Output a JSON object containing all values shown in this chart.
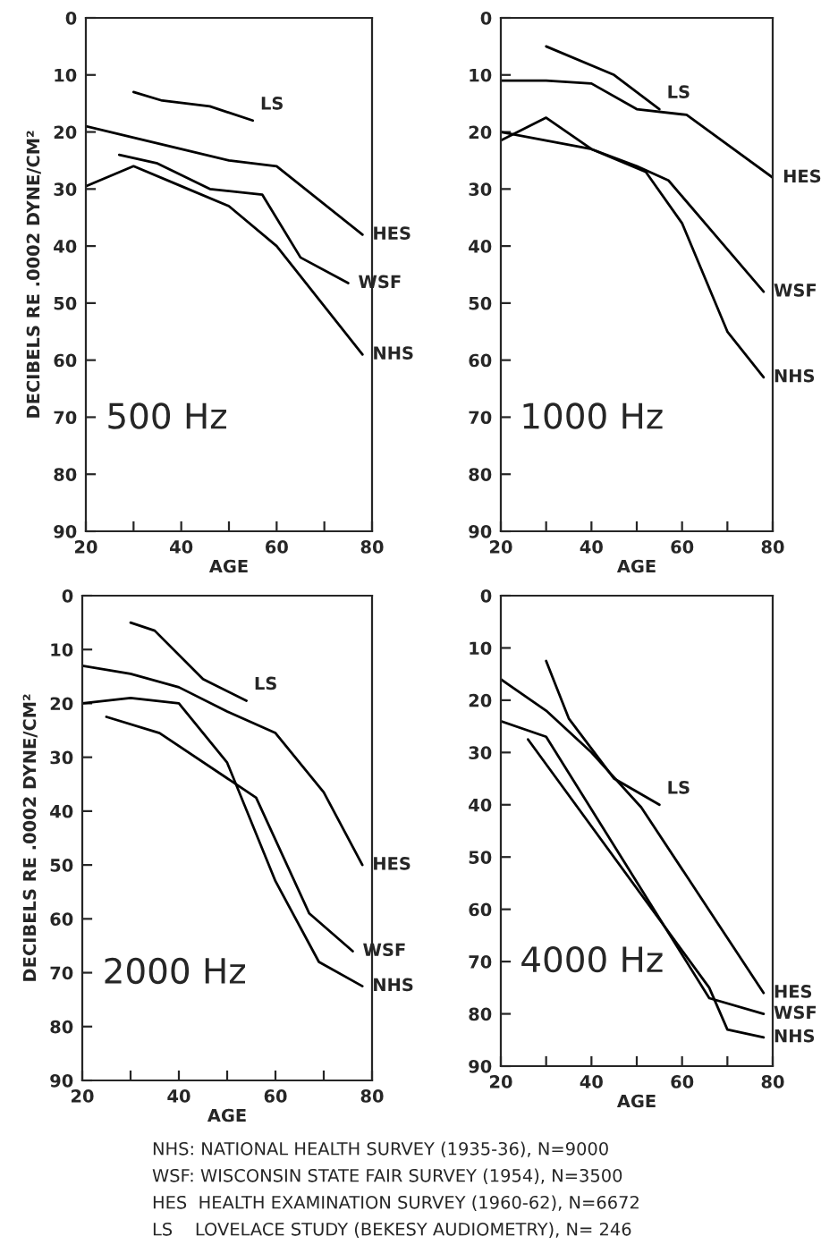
{
  "chart_data": [
    {
      "type": "line",
      "title": "500 Hz",
      "xlabel": "AGE",
      "ylabel": "DECIBELS RE .0002 DYNE/CM²",
      "xlim": [
        20,
        80
      ],
      "ylim": [
        90,
        0
      ],
      "xticks": [
        20,
        {
          "value": 30,
          "label": null
        },
        40,
        {
          "value": 50,
          "label": null
        },
        60,
        {
          "value": 70,
          "label": null
        },
        80
      ],
      "yticks": [
        0,
        10,
        20,
        30,
        40,
        50,
        60,
        70,
        80,
        90
      ],
      "marker": "none",
      "line_style": "solid",
      "grid": false,
      "series": [
        {
          "name": "LS",
          "color": "#000000",
          "x": [
            30,
            36,
            46,
            55
          ],
          "values": [
            13,
            14.5,
            15.5,
            18
          ]
        },
        {
          "name": "HES",
          "color": "#000000",
          "x": [
            20,
            30,
            40,
            50,
            60,
            78
          ],
          "values": [
            19,
            21,
            23,
            25,
            26,
            38
          ]
        },
        {
          "name": "WSF",
          "color": "#000000",
          "x": [
            27,
            35,
            46,
            57,
            65,
            75
          ],
          "values": [
            24,
            25.5,
            30,
            31,
            42,
            46.5
          ]
        },
        {
          "name": "NHS",
          "color": "#000000",
          "x": [
            20,
            30,
            40,
            50,
            60,
            78
          ],
          "values": [
            29.5,
            26,
            29.5,
            33,
            40,
            59
          ]
        }
      ]
    },
    {
      "type": "line",
      "title": "1000 Hz",
      "xlabel": "AGE",
      "xlim": [
        20,
        80
      ],
      "ylim": [
        90,
        0
      ],
      "xticks": [
        20,
        {
          "value": 30,
          "label": null
        },
        40,
        {
          "value": 50,
          "label": null
        },
        60,
        {
          "value": 70,
          "label": null
        },
        80
      ],
      "yticks": [
        0,
        10,
        20,
        30,
        40,
        50,
        60,
        70,
        80,
        90
      ],
      "marker": "none",
      "line_style": "solid",
      "grid": false,
      "series": [
        {
          "name": "LS",
          "color": "#000000",
          "x": [
            30,
            45,
            55
          ],
          "values": [
            5,
            10,
            16
          ]
        },
        {
          "name": "HES",
          "color": "#000000",
          "x": [
            20,
            30,
            40,
            50,
            61,
            80
          ],
          "values": [
            11,
            11,
            11.5,
            16,
            17,
            28
          ]
        },
        {
          "name": "WSF",
          "color": "#000000",
          "x": [
            20,
            30,
            40,
            50,
            57,
            78
          ],
          "values": [
            21.5,
            17.5,
            23,
            26,
            28.5,
            48
          ]
        },
        {
          "name": "NHS",
          "color": "#000000",
          "x": [
            20,
            30,
            40,
            52,
            60,
            70,
            78
          ],
          "values": [
            20,
            21.5,
            23,
            27,
            36,
            55,
            63
          ]
        }
      ]
    },
    {
      "type": "line",
      "title": "2000 Hz",
      "xlabel": "AGE",
      "ylabel": "DECIBELS RE .0002 DYNE/CM²",
      "xlim": [
        20,
        80
      ],
      "ylim": [
        90,
        0
      ],
      "xticks": [
        20,
        {
          "value": 30,
          "label": null
        },
        40,
        {
          "value": 50,
          "label": null
        },
        60,
        {
          "value": 70,
          "label": null
        },
        80
      ],
      "yticks": [
        0,
        10,
        20,
        30,
        40,
        50,
        60,
        70,
        80,
        90
      ],
      "marker": "none",
      "line_style": "solid",
      "grid": false,
      "series": [
        {
          "name": "LS",
          "color": "#000000",
          "x": [
            30,
            35,
            45,
            54
          ],
          "values": [
            5,
            6.5,
            15.5,
            19.5
          ]
        },
        {
          "name": "HES",
          "color": "#000000",
          "x": [
            20,
            30,
            40,
            50,
            60,
            70,
            78
          ],
          "values": [
            13,
            14.5,
            17,
            21.5,
            25.5,
            36.5,
            50
          ]
        },
        {
          "name": "WSF",
          "color": "#000000",
          "x": [
            25,
            36,
            56,
            67,
            76
          ],
          "values": [
            22.5,
            25.5,
            37.5,
            59,
            66
          ]
        },
        {
          "name": "NHS",
          "color": "#000000",
          "x": [
            20,
            30,
            40,
            50,
            60,
            69,
            78
          ],
          "values": [
            20,
            19,
            20,
            31,
            53,
            68,
            72.5
          ]
        }
      ]
    },
    {
      "type": "line",
      "title": "4000 Hz",
      "xlabel": "AGE",
      "xlim": [
        20,
        80
      ],
      "ylim": [
        90,
        0
      ],
      "xticks": [
        20,
        {
          "value": 30,
          "label": null
        },
        40,
        {
          "value": 50,
          "label": null
        },
        60,
        {
          "value": 70,
          "label": null
        },
        80
      ],
      "yticks": [
        0,
        10,
        20,
        30,
        40,
        50,
        60,
        70,
        80,
        90
      ],
      "marker": "none",
      "line_style": "solid",
      "grid": false,
      "series": [
        {
          "name": "LS",
          "color": "#000000",
          "x": [
            30,
            35,
            45,
            55
          ],
          "values": [
            12.5,
            23.5,
            35,
            40
          ]
        },
        {
          "name": "HES",
          "color": "#000000",
          "x": [
            20,
            30,
            40,
            51,
            78
          ],
          "values": [
            16,
            22,
            30,
            40.5,
            76
          ]
        },
        {
          "name": "WSF",
          "color": "#000000",
          "x": [
            20,
            30,
            66,
            78
          ],
          "values": [
            24,
            27,
            77,
            80
          ]
        },
        {
          "name": "NHS",
          "color": "#000000",
          "x": [
            26,
            66,
            70,
            78
          ],
          "values": [
            27.5,
            75,
            83,
            84.5
          ]
        }
      ],
      "annotations": [
        "NHS: NATIONAL HEALTH SURVEY (1935-36), N=9000",
        "WSF: WISCONSIN STATE FAIR SURVEY (1954), N=3500",
        "HES  HEALTH EXAMINATION SURVEY (1960-62), N=6672",
        "LS    LOVELACE STUDY (BEKESY AUDIOMETRY), N= 246"
      ]
    }
  ]
}
